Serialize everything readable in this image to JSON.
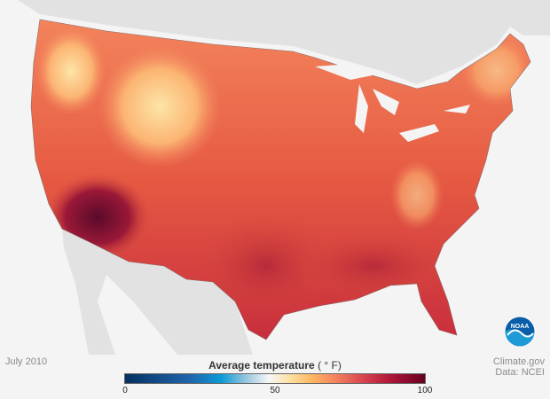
{
  "map": {
    "date": "July 2010",
    "variable": "Average temperature",
    "unit": "( ° F)",
    "credit": "Climate.gov",
    "data_source": "Data: NCEI",
    "legend": {
      "min": 0,
      "mid": 50,
      "max": 100,
      "tick_labels": [
        "0",
        "50",
        "100"
      ],
      "colors": [
        "#053061",
        "#0b9ad6",
        "#f7f7f7",
        "#fdb863",
        "#d6404e",
        "#67001f"
      ]
    },
    "logo": "NOAA",
    "land_color": "#e2e2e2",
    "ocean_color": "#f4f4f4"
  }
}
